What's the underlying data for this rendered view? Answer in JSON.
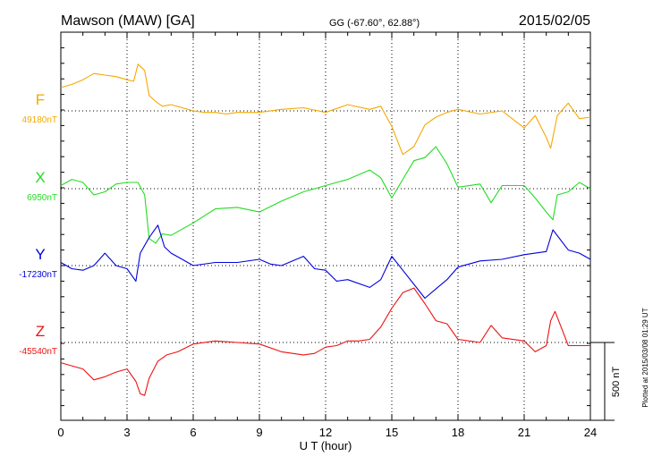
{
  "header": {
    "station": "Mawson (MAW)  [GA]",
    "coords": "GG (-67.60°,  62.88°)",
    "date": "2015/02/05"
  },
  "chart_data": {
    "type": "line",
    "xlabel": "U T (hour)",
    "xlim": [
      0,
      24
    ],
    "xticks": [
      0,
      3,
      6,
      9,
      12,
      15,
      18,
      21,
      24
    ],
    "x_tick_labels": [
      "0",
      "3",
      "6",
      "9",
      "12",
      "15",
      "18",
      "21",
      "24"
    ],
    "grid": "dotted vertical lines every 3 h; dotted baseline per component",
    "scale_bar": {
      "label": "500 nT",
      "value_nT": 500
    },
    "footer_note": "Plotted at 2015/03/08 01:29 UT",
    "series": [
      {
        "name": "F",
        "baseline_label": "49180nT",
        "color": "#f5a800",
        "x": [
          0,
          0.5,
          1,
          1.5,
          2,
          2.5,
          3,
          3.3,
          3.5,
          3.8,
          4,
          4.3,
          4.6,
          5,
          5.5,
          6,
          6.5,
          7,
          7.5,
          8,
          9,
          10,
          11,
          12,
          13,
          14,
          14.5,
          15,
          15.5,
          16,
          16.5,
          17,
          17.5,
          18,
          19,
          20,
          21,
          21.5,
          22,
          22.2,
          22.5,
          23,
          23.5,
          24
        ],
        "values": [
          150,
          170,
          200,
          240,
          230,
          220,
          200,
          190,
          300,
          260,
          100,
          60,
          30,
          40,
          20,
          0,
          -10,
          -10,
          -20,
          -10,
          -10,
          10,
          20,
          -10,
          40,
          10,
          30,
          -100,
          -280,
          -230,
          -90,
          -40,
          -10,
          10,
          -20,
          0,
          -110,
          -30,
          -170,
          -240,
          -30,
          50,
          -50,
          -40
        ]
      },
      {
        "name": "X",
        "baseline_label": "6950nT",
        "color": "#22dd22",
        "x": [
          0,
          0.5,
          1,
          1.5,
          2,
          2.5,
          3,
          3.5,
          3.8,
          4,
          4.3,
          4.6,
          5,
          5.5,
          6,
          7,
          8,
          9,
          10,
          11,
          12,
          13,
          14,
          14.5,
          15,
          15.5,
          16,
          16.5,
          17,
          17.5,
          18,
          19,
          19.5,
          20,
          21,
          21.5,
          22,
          22.3,
          22.5,
          23,
          23.5,
          24
        ],
        "values": [
          20,
          60,
          40,
          -40,
          -20,
          30,
          40,
          40,
          -40,
          -320,
          -350,
          -290,
          -300,
          -260,
          -220,
          -130,
          -120,
          -150,
          -80,
          -20,
          20,
          60,
          120,
          70,
          -60,
          60,
          180,
          200,
          270,
          160,
          10,
          30,
          -90,
          20,
          20,
          -60,
          -150,
          -200,
          -40,
          -20,
          40,
          0
        ]
      },
      {
        "name": "Y",
        "baseline_label": "-17230nT",
        "color": "#0000dd",
        "x": [
          0,
          0.5,
          1,
          1.5,
          2,
          2.5,
          3,
          3.4,
          3.6,
          4,
          4.4,
          4.7,
          5,
          5.5,
          6,
          7,
          8,
          9,
          9.5,
          10,
          11,
          11.5,
          12,
          12.5,
          13,
          14,
          14.5,
          15,
          15.5,
          16,
          16.5,
          17,
          17.5,
          18,
          19,
          20,
          21,
          22,
          22.3,
          23,
          23.5,
          24
        ],
        "values": [
          20,
          -20,
          -30,
          0,
          80,
          0,
          -20,
          -100,
          80,
          180,
          260,
          120,
          80,
          40,
          0,
          20,
          20,
          40,
          10,
          0,
          60,
          -20,
          -30,
          -100,
          -90,
          -140,
          -90,
          60,
          -30,
          -120,
          -210,
          -150,
          -90,
          -10,
          30,
          40,
          70,
          90,
          230,
          100,
          80,
          40
        ]
      },
      {
        "name": "Z",
        "baseline_label": "-45540nT",
        "color": "#ee1111",
        "x": [
          0,
          0.5,
          1,
          1.5,
          2,
          2.5,
          3,
          3.4,
          3.6,
          3.8,
          4,
          4.4,
          4.8,
          5.3,
          6,
          7,
          8,
          9,
          10,
          11,
          11.5,
          12,
          12.5,
          13,
          13.5,
          14,
          14.5,
          15,
          15.5,
          16,
          16.5,
          17,
          17.5,
          18,
          19,
          19.5,
          20,
          21,
          21.5,
          22,
          22.2,
          22.4,
          23,
          23.5,
          24
        ],
        "values": [
          -130,
          -150,
          -170,
          -240,
          -220,
          -190,
          -170,
          -250,
          -330,
          -340,
          -230,
          -120,
          -80,
          -60,
          -10,
          10,
          0,
          -10,
          -60,
          -80,
          -70,
          -30,
          -20,
          10,
          10,
          20,
          100,
          220,
          320,
          350,
          250,
          140,
          120,
          20,
          0,
          110,
          30,
          10,
          -60,
          -20,
          140,
          200,
          -20,
          -20,
          -20
        ]
      }
    ]
  }
}
